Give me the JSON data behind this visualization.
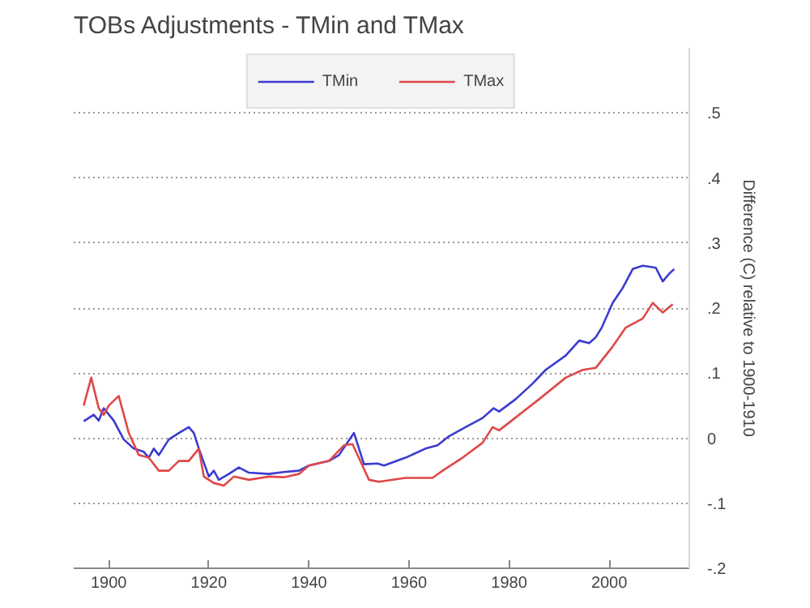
{
  "chart_data": {
    "type": "line",
    "title": "TOBs Adjustments - TMin and TMax",
    "ylabel": "Difference (C) relative to 1900-1910",
    "xlim": [
      1893,
      2016
    ],
    "xticks": [
      1900,
      1920,
      1940,
      1960,
      1980,
      2000
    ],
    "ylim": [
      -0.2,
      0.6
    ],
    "yticks": [
      {
        "value": 0.5,
        "label": ".5"
      },
      {
        "value": 0.4,
        "label": ".4"
      },
      {
        "value": 0.3,
        "label": ".3"
      },
      {
        "value": 0.2,
        "label": ".2"
      },
      {
        "value": 0.1,
        "label": ".1"
      },
      {
        "value": 0,
        "label": "0"
      },
      {
        "value": -0.1,
        "label": "-.1"
      },
      {
        "value": -0.2,
        "label": "-.2"
      }
    ],
    "grid": "y",
    "legend": "top",
    "line_style": "solid",
    "series": [
      {
        "name": "TMin",
        "color": "#3b3bd0",
        "x": [
          1895,
          1897,
          1898,
          1899,
          1901,
          1903,
          1905,
          1907,
          1908,
          1909,
          1910,
          1912,
          1914,
          1916,
          1917,
          1918,
          1920,
          1921,
          1922,
          1924,
          1926,
          1928,
          1932,
          1935,
          1938,
          1940,
          1944,
          1946,
          1949,
          1951,
          1953.7,
          1955,
          1959.3,
          1963.3,
          1965.7,
          1968,
          1971.3,
          1974.7,
          1976.9,
          1978,
          1981.3,
          1984.7,
          1987.3,
          1991.3,
          1994,
          1996,
          1997.3,
          1998.5,
          2000.7,
          2002.7,
          2004.7,
          2006.7,
          2009.3,
          2010.7,
          2012,
          2013
        ],
        "values": [
          0.026,
          0.036,
          0.027,
          0.046,
          0.027,
          -0.002,
          -0.016,
          -0.021,
          -0.03,
          -0.016,
          -0.026,
          -0.002,
          0.008,
          0.017,
          0.008,
          -0.016,
          -0.059,
          -0.05,
          -0.064,
          -0.055,
          -0.045,
          -0.053,
          -0.055,
          -0.052,
          -0.05,
          -0.042,
          -0.035,
          -0.026,
          0.008,
          -0.04,
          -0.039,
          -0.042,
          -0.03,
          -0.016,
          -0.011,
          0.003,
          0.017,
          0.031,
          0.046,
          0.041,
          0.06,
          0.084,
          0.105,
          0.127,
          0.15,
          0.146,
          0.155,
          0.17,
          0.208,
          0.231,
          0.26,
          0.265,
          0.262,
          0.241,
          0.253,
          0.26
        ]
      },
      {
        "name": "TMax",
        "color": "#e04848",
        "x": [
          1895,
          1896.5,
          1898,
          1899,
          1900,
          1902,
          1904,
          1906,
          1908,
          1910,
          1912,
          1914,
          1916,
          1918,
          1919,
          1921,
          1923,
          1925,
          1928,
          1932,
          1935,
          1938,
          1940,
          1944,
          1947,
          1948.7,
          1952,
          1954,
          1959.3,
          1964.7,
          1966.7,
          1970.7,
          1974.7,
          1976.7,
          1978,
          1982,
          1986,
          1991.3,
          1994.7,
          1997.3,
          2000.7,
          2003.3,
          2006.7,
          2008.7,
          2010.7,
          2012.7
        ],
        "values": [
          0.05,
          0.093,
          0.046,
          0.036,
          0.05,
          0.065,
          0.008,
          -0.026,
          -0.03,
          -0.05,
          -0.05,
          -0.035,
          -0.035,
          -0.016,
          -0.059,
          -0.069,
          -0.073,
          -0.059,
          -0.064,
          -0.059,
          -0.06,
          -0.055,
          -0.042,
          -0.035,
          -0.011,
          -0.009,
          -0.064,
          -0.067,
          -0.061,
          -0.061,
          -0.05,
          -0.03,
          -0.007,
          0.017,
          0.012,
          0.036,
          0.06,
          0.093,
          0.105,
          0.108,
          0.141,
          0.17,
          0.184,
          0.208,
          0.193,
          0.206
        ]
      }
    ]
  }
}
